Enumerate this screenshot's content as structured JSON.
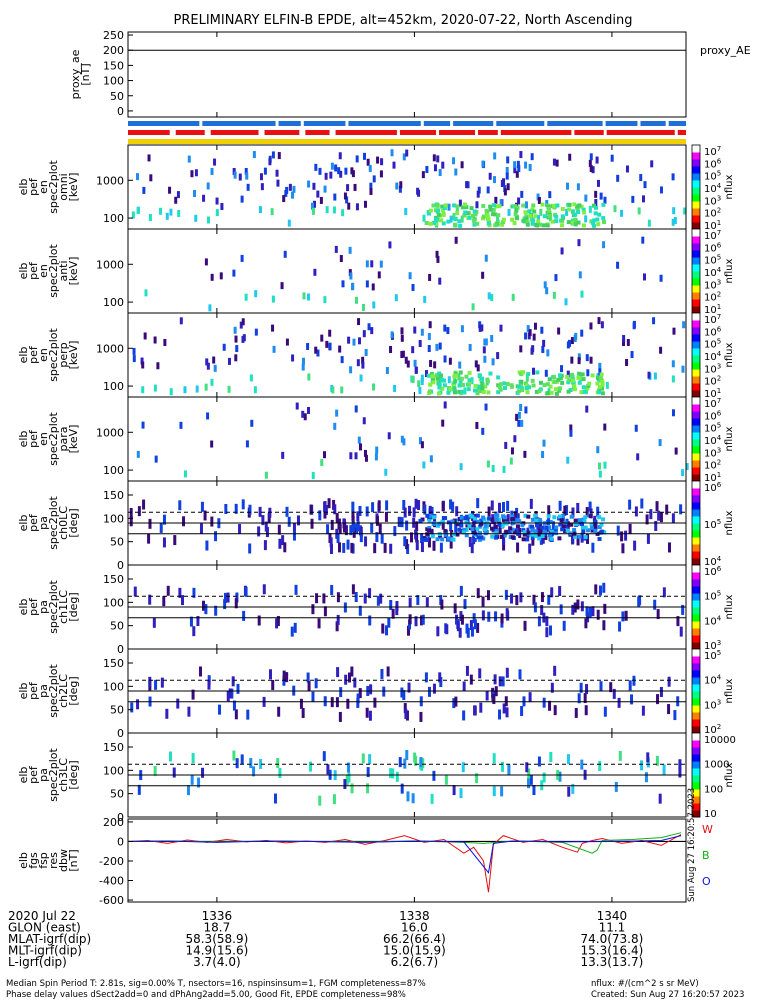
{
  "title": "PRELIMINARY ELFIN-B EPDE, alt=452km, 2020-07-22, North Ascending",
  "chart_data": [
    {
      "id": "proxy_ae",
      "type": "line",
      "ylabel": [
        "proxy_ae",
        "[nT]"
      ],
      "right_label": "proxy_AE",
      "ylim": [
        -20,
        260
      ],
      "yticks": [
        "250",
        "200",
        "150",
        "100",
        "50",
        "0"
      ],
      "hline": 200
    },
    {
      "id": "bars",
      "type": "bar",
      "rows": [
        "#1e6fd8",
        "#e81010",
        "#f0d000"
      ]
    },
    {
      "id": "pef_en_omni",
      "type": "heatmap",
      "ylabel": [
        "elb",
        "pef",
        "en",
        "spec2plot",
        "omni",
        "[keV]"
      ],
      "yticks": [
        "1000",
        "100"
      ],
      "colorbar": {
        "label": "nflux",
        "ticks": [
          "10^7",
          "10^6",
          "10^5",
          "10^4",
          "10^3",
          "10^2",
          "10^1"
        ]
      }
    },
    {
      "id": "pef_en_anti",
      "type": "heatmap",
      "ylabel": [
        "elb",
        "pef",
        "en",
        "spec2plot",
        "anti",
        "[keV]"
      ],
      "yticks": [
        "1000",
        "100"
      ],
      "colorbar": {
        "label": "nflux",
        "ticks": [
          "10^7",
          "10^6",
          "10^5",
          "10^4",
          "10^3",
          "10^2",
          "10^1"
        ]
      }
    },
    {
      "id": "pef_en_perp",
      "type": "heatmap",
      "ylabel": [
        "elb",
        "pef",
        "en",
        "spec2plot",
        "perp",
        "[keV]"
      ],
      "yticks": [
        "1000",
        "100"
      ],
      "colorbar": {
        "label": "nflux",
        "ticks": [
          "10^7",
          "10^6",
          "10^5",
          "10^4",
          "10^3",
          "10^2",
          "10^1"
        ]
      }
    },
    {
      "id": "pef_en_para",
      "type": "heatmap",
      "ylabel": [
        "elb",
        "pef",
        "en",
        "spec2plot",
        "para",
        "[keV]"
      ],
      "yticks": [
        "1000",
        "100"
      ],
      "colorbar": {
        "label": "nflux",
        "ticks": [
          "10^7",
          "10^6",
          "10^5",
          "10^4",
          "10^3",
          "10^2",
          "10^1"
        ]
      }
    },
    {
      "id": "pef_pa_ch0",
      "type": "heatmap",
      "ylabel": [
        "elb",
        "pef",
        "pa",
        "spec2plot",
        "ch0LC",
        "[deg]"
      ],
      "yticks": [
        "150",
        "100",
        "50",
        "0"
      ],
      "colorbar": {
        "label": "nflux",
        "ticks": [
          "10^6",
          "10^5",
          "10^4"
        ]
      }
    },
    {
      "id": "pef_pa_ch1",
      "type": "heatmap",
      "ylabel": [
        "elb",
        "pef",
        "pa",
        "spec2plot",
        "ch1LC",
        "[deg]"
      ],
      "yticks": [
        "150",
        "100",
        "50",
        "0"
      ],
      "colorbar": {
        "label": "nflux",
        "ticks": [
          "10^6",
          "10^5",
          "10^4",
          "10^3"
        ]
      }
    },
    {
      "id": "pef_pa_ch2",
      "type": "heatmap",
      "ylabel": [
        "elb",
        "pef",
        "pa",
        "spec2plot",
        "ch2LC",
        "[deg]"
      ],
      "yticks": [
        "150",
        "100",
        "50",
        "0"
      ],
      "colorbar": {
        "label": "nflux",
        "ticks": [
          "10^5",
          "10^4",
          "10^3",
          "10^2"
        ]
      }
    },
    {
      "id": "pef_pa_ch3",
      "type": "heatmap",
      "ylabel": [
        "elb",
        "pef",
        "pa",
        "spec2plot",
        "ch3LC",
        "[deg]"
      ],
      "yticks": [
        "150",
        "100",
        "50",
        "0"
      ],
      "colorbar": {
        "label": "nflux",
        "ticks": [
          "10000",
          "1000",
          "100",
          "10"
        ]
      }
    },
    {
      "id": "fgs_dbw",
      "type": "line",
      "ylabel": [
        "elb",
        "fgs",
        "fsp",
        "res",
        "dbw",
        "[nT]"
      ],
      "ylim": [
        -620,
        230
      ],
      "yticks": [
        "200",
        "0",
        "-200",
        "-400",
        "-600"
      ],
      "legend": [
        {
          "name": "W",
          "color": "#e01010"
        },
        {
          "name": "B",
          "color": "#10b010"
        },
        {
          "name": "O",
          "color": "#1010e0"
        }
      ],
      "series": [
        {
          "name": "W",
          "color": "#e01010",
          "x": [
            1335.1,
            1335.3,
            1335.5,
            1335.7,
            1335.9,
            1336.1,
            1336.3,
            1336.5,
            1336.7,
            1336.9,
            1337.1,
            1337.3,
            1337.5,
            1337.7,
            1337.9,
            1338.1,
            1338.3,
            1338.5,
            1338.6,
            1338.7,
            1338.75,
            1338.8,
            1338.9,
            1339.1,
            1339.3,
            1339.5,
            1339.65,
            1339.7,
            1339.8,
            1339.9,
            1340.1,
            1340.3,
            1340.5,
            1340.7
          ],
          "y": [
            0,
            10,
            -20,
            15,
            -10,
            20,
            -5,
            10,
            -15,
            5,
            -10,
            20,
            -30,
            10,
            60,
            -10,
            20,
            -120,
            -60,
            -200,
            -520,
            -30,
            60,
            -10,
            20,
            -60,
            -110,
            -20,
            10,
            30,
            -20,
            10,
            -40,
            70
          ]
        },
        {
          "name": "B",
          "color": "#10b010",
          "x": [
            1335.1,
            1335.5,
            1336.0,
            1336.5,
            1337.0,
            1337.5,
            1338.0,
            1338.5,
            1338.7,
            1339.0,
            1339.5,
            1339.8,
            1339.85,
            1339.9,
            1340.2,
            1340.5,
            1340.7
          ],
          "y": [
            0,
            5,
            -5,
            5,
            0,
            -5,
            5,
            -10,
            -20,
            5,
            -10,
            -120,
            -90,
            10,
            20,
            40,
            90
          ]
        },
        {
          "name": "O",
          "color": "#1010e0",
          "x": [
            1335.1,
            1335.5,
            1336.0,
            1336.5,
            1337.0,
            1337.5,
            1338.0,
            1338.5,
            1338.75,
            1338.8,
            1339.0,
            1339.5,
            1340.0,
            1340.5,
            1340.7
          ],
          "y": [
            0,
            5,
            -10,
            5,
            0,
            -10,
            5,
            -5,
            -320,
            -20,
            5,
            -5,
            0,
            10,
            60
          ]
        }
      ]
    }
  ],
  "xaxis": {
    "xlim": [
      1335.1,
      1340.75
    ],
    "ticks": [
      {
        "value": 1336,
        "label": "1336",
        "glon": "18.7",
        "mlat": "58.3(58.9)",
        "mlt": "14.9(15.6)",
        "l": "3.7(4.0)"
      },
      {
        "value": 1338,
        "label": "1338",
        "glon": "16.0",
        "mlat": "66.2(66.4)",
        "mlt": "15.0(15.9)",
        "l": "6.2(6.7)"
      },
      {
        "value": 1340,
        "label": "1340",
        "glon": "11.1",
        "mlat": "74.0(73.8)",
        "mlt": "15.3(16.4)",
        "l": "13.3(13.7)"
      }
    ],
    "row_labels": [
      "2020 Jul 22",
      "GLON (east)",
      "MLAT-igrf(dip)",
      "MLT-igrf(dip)",
      "L-igrf(dip)"
    ]
  },
  "footer": {
    "line1": "Median Spin Period T: 2.81s, sig=0.00% T, nsectors=16, nspinsinsum=1, FGM completeness=87%",
    "line2": "Phase delay values dSect2add=0 and dPhAng2add=5.00, Good Fit, EPDE completeness=98%",
    "units": "nflux: #/(cm^2 s sr MeV)",
    "created": "Created: Sun Aug 27 16:20:57 2023",
    "side_stamp": "Sun Aug 27 16:20:57 2023"
  },
  "colors": {
    "lines": "#000000",
    "purple": "#3a0a7a",
    "blue": "#1040e0",
    "cyan": "#20e0e0",
    "green": "#40d040",
    "red": "#e01010"
  }
}
